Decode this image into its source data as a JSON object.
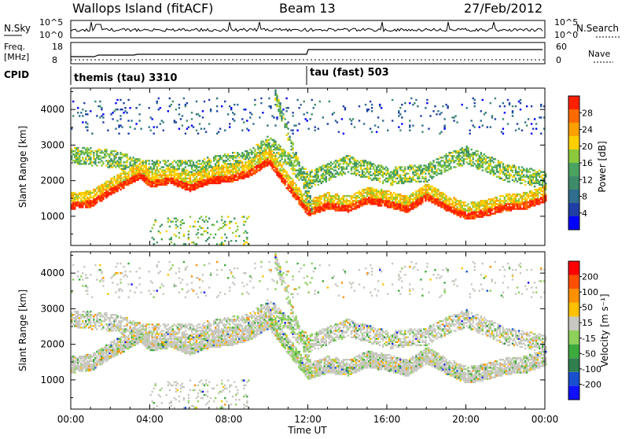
{
  "header": {
    "site": "Wallops Island (fitACF)",
    "beam": "Beam 13",
    "date": "27/Feb/2012"
  },
  "status_panels": {
    "nsky_label": "N.Sky",
    "nsky_ticks": [
      "10^5",
      "10^0"
    ],
    "nsearch_label": "N.Search",
    "nsearch_ticks": [
      "10^5",
      "10^0"
    ],
    "freq_label_1": "Freq.",
    "freq_label_2": "[MHz]",
    "freq_ticks": [
      "18",
      "8"
    ],
    "nave_label": "Nave",
    "nave_ticks": [
      "60",
      "0"
    ],
    "cpid_label": "CPID",
    "cpid_segments": [
      {
        "name": "themis (tau) 3310",
        "start_hour": 0
      },
      {
        "name": "tau (fast) 503",
        "start_hour": 12
      }
    ]
  },
  "chart_data": [
    {
      "type": "heatmap",
      "title": "",
      "xlabel": "Time UT",
      "ylabel": "Slant Range [km]",
      "xlim_hours": [
        0,
        24
      ],
      "ylim": [
        180,
        4600
      ],
      "x_ticks": [
        "00:00",
        "04:00",
        "08:00",
        "12:00",
        "16:00",
        "20:00",
        "00:00"
      ],
      "y_ticks": [
        1000,
        2000,
        3000,
        4000
      ],
      "colorbar": {
        "label": "Power [dB]",
        "ticks": [
          "28",
          "24",
          "20",
          "16",
          "12",
          "8",
          "4"
        ],
        "colors": [
          "#0000ff",
          "#1f3fa6",
          "#2f6e8c",
          "#3e8b6a",
          "#4aa360",
          "#8bc83c",
          "#ffd000",
          "#ffa000",
          "#ff6a00",
          "#ff2000"
        ]
      },
      "echo_bands": [
        {
          "name": "main",
          "points": [
            [
              0,
              1300
            ],
            [
              1,
              1350
            ],
            [
              2,
              1700
            ],
            [
              3,
              2000
            ],
            [
              3.5,
              2150
            ],
            [
              4,
              1900
            ],
            [
              5,
              2000
            ],
            [
              6,
              1800
            ],
            [
              6.5,
              1900
            ],
            [
              7,
              2000
            ],
            [
              8,
              2050
            ],
            [
              9,
              2200
            ],
            [
              10,
              2550
            ],
            [
              11,
              1800
            ],
            [
              12,
              1100
            ],
            [
              13,
              1300
            ],
            [
              14,
              1200
            ],
            [
              15,
              1450
            ],
            [
              16,
              1350
            ],
            [
              17,
              1200
            ],
            [
              18,
              1550
            ],
            [
              19,
              1250
            ],
            [
              20,
              1000
            ],
            [
              21,
              1100
            ],
            [
              22,
              1250
            ],
            [
              23,
              1300
            ],
            [
              24,
              1500
            ]
          ]
        },
        {
          "name": "upper",
          "points": [
            [
              0,
              2700
            ],
            [
              2,
              2600
            ],
            [
              4,
              2300
            ],
            [
              6,
              2300
            ],
            [
              8,
              2500
            ],
            [
              9,
              2600
            ],
            [
              10,
              3000
            ],
            [
              11,
              2500
            ],
            [
              12,
              2000
            ],
            [
              14,
              2450
            ],
            [
              16,
              2100
            ],
            [
              18,
              2200
            ],
            [
              19,
              2500
            ],
            [
              20,
              2700
            ],
            [
              22,
              2200
            ],
            [
              24,
              2000
            ]
          ]
        }
      ]
    },
    {
      "type": "heatmap",
      "title": "",
      "xlabel": "Time UT",
      "ylabel": "Slant Range [km]",
      "xlim_hours": [
        0,
        24
      ],
      "ylim": [
        180,
        4600
      ],
      "x_ticks": [
        "00:00",
        "04:00",
        "08:00",
        "12:00",
        "16:00",
        "20:00",
        "00:00"
      ],
      "y_ticks": [
        1000,
        2000,
        3000,
        4000
      ],
      "colorbar": {
        "label": "Velocity [m s⁻¹]",
        "ticks": [
          "200",
          "100",
          "50",
          "15",
          "-15",
          "-50",
          "-100",
          "-200"
        ],
        "colors": [
          "#1010ff",
          "#1850d0",
          "#2f7f4f",
          "#3daa3d",
          "#8ed05a",
          "#c8c8c0",
          "#ffc000",
          "#ff9000",
          "#ff5000",
          "#ff0000"
        ]
      }
    }
  ]
}
